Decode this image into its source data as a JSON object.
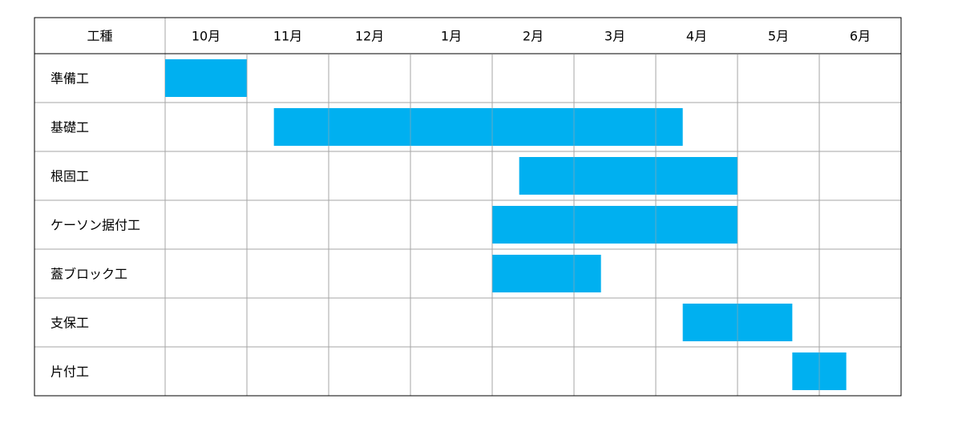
{
  "header": {
    "task_column": "工種"
  },
  "chart_data": {
    "type": "bar",
    "months": [
      "10月",
      "11月",
      "12月",
      "1月",
      "2月",
      "3月",
      "4月",
      "5月",
      "6月"
    ],
    "tasks": [
      {
        "label": "準備工",
        "start": 0.0,
        "end": 1.0
      },
      {
        "label": "基礎工",
        "start": 1.33,
        "end": 6.33
      },
      {
        "label": "根固工",
        "start": 4.33,
        "end": 7.0
      },
      {
        "label": "ケーソン据付工",
        "start": 4.0,
        "end": 7.0
      },
      {
        "label": "蓋ブロック工",
        "start": 4.0,
        "end": 5.33
      },
      {
        "label": "支保工",
        "start": 6.33,
        "end": 7.67
      },
      {
        "label": "片付工",
        "start": 7.67,
        "end": 8.33
      }
    ],
    "bar_color": "#00B0F0",
    "grid_color": "#A6A6A6",
    "border_color": "#000000",
    "grid": true
  }
}
